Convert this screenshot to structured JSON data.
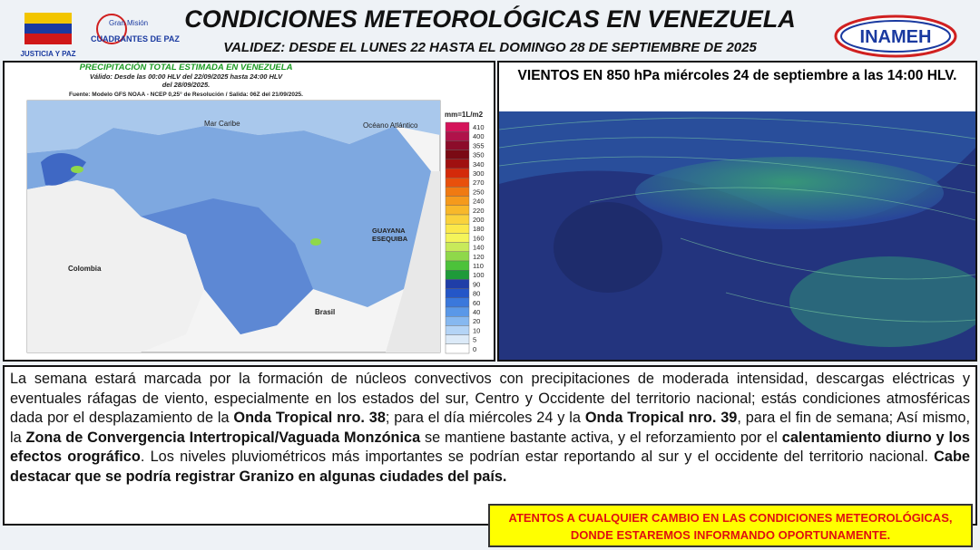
{
  "header": {
    "title": "CONDICIONES METEOROLÓGICAS EN VENEZUELA",
    "subtitle": "VALIDEZ: DESDE EL LUNES 22 HASTA EL DOMINGO 28 DE SEPTIEMBRE DE 2025",
    "logo_left": "JUSTICIA Y PAZ",
    "logo_mid_top": "Gran Misión",
    "logo_mid": "CUADRANTES DE PAZ",
    "logo_right": "INAMEH"
  },
  "left_panel": {
    "title": "PRECIPITACIÓN TOTAL ESTIMADA EN VENEZUELA",
    "validity": "Válido: Desde las 00:00 HLV del 22/09/2025 hasta 24:00 HLV",
    "validity2": "del 28/09/2025.",
    "source": "Fuente: Modelo GFS NOAA - NCEP 0,25° de Resolución / Salida: 06Z del 21/09/2025.",
    "unit": "mm=1L/m2",
    "map_labels": [
      "Mar Caribe",
      "Océano Atlántico",
      "Colombia",
      "Brasil",
      "GUAYANA",
      "ESEQUIBA"
    ],
    "legend": [
      {
        "value": "410",
        "color": "#d4145a"
      },
      {
        "value": "400",
        "color": "#b0124a"
      },
      {
        "value": "355",
        "color": "#8c0c2a"
      },
      {
        "value": "350",
        "color": "#7a0a14"
      },
      {
        "value": "340",
        "color": "#a01010"
      },
      {
        "value": "300",
        "color": "#d42a0a"
      },
      {
        "value": "270",
        "color": "#e8500c"
      },
      {
        "value": "250",
        "color": "#f07a12"
      },
      {
        "value": "240",
        "color": "#f59a1c"
      },
      {
        "value": "220",
        "color": "#f8b82a"
      },
      {
        "value": "200",
        "color": "#fad23c"
      },
      {
        "value": "180",
        "color": "#fbe84a"
      },
      {
        "value": "160",
        "color": "#f4f45a"
      },
      {
        "value": "140",
        "color": "#c8ea5a"
      },
      {
        "value": "120",
        "color": "#8fd84a"
      },
      {
        "value": "110",
        "color": "#4cc23a"
      },
      {
        "value": "100",
        "color": "#1e9a3a"
      },
      {
        "value": "90",
        "color": "#1f3ea8"
      },
      {
        "value": "80",
        "color": "#2456c8"
      },
      {
        "value": "60",
        "color": "#3a78dc"
      },
      {
        "value": "40",
        "color": "#5a98e8"
      },
      {
        "value": "20",
        "color": "#86b8f0"
      },
      {
        "value": "10",
        "color": "#b4d4f6"
      },
      {
        "value": "5",
        "color": "#dceaf8"
      },
      {
        "value": "0",
        "color": "#ffffff"
      }
    ]
  },
  "right_panel": {
    "title": "VIENTOS EN 850 hPa  miércoles 24 de septiembre a las 14:00 HLV."
  },
  "body": {
    "segments": [
      {
        "text": "La semana estará marcada por la formación de núcleos convectivos con precipitaciones de moderada intensidad, descargas eléctricas y eventuales ráfagas de viento, especialmente en los estados del sur, Centro y Occidente del territorio nacional; estás condiciones atmosféricas dada por el desplazamiento de la ",
        "bold": false
      },
      {
        "text": "Onda Tropical nro. 38",
        "bold": true
      },
      {
        "text": "; para el día miércoles 24 y la ",
        "bold": false
      },
      {
        "text": "Onda Tropical nro. 39",
        "bold": true
      },
      {
        "text": ", para el fin de semana; Así mismo, la ",
        "bold": false
      },
      {
        "text": "Zona de Convergencia Intertropical/Vaguada Monzónica",
        "bold": true
      },
      {
        "text": " se mantiene bastante activa, y el reforzamiento por el ",
        "bold": false
      },
      {
        "text": "calentamiento diurno y los efectos orográfico",
        "bold": true
      },
      {
        "text": ". Los niveles pluviométricos más importantes se podrían estar reportando al sur y el occidente del territorio nacional. ",
        "bold": false
      },
      {
        "text": "Cabe destacar que se podría registrar Granizo en algunas ciudades del país.",
        "bold": true
      }
    ]
  },
  "notice": {
    "line1": "ATENTOS A CUALQUIER CAMBIO EN LAS CONDICIONES METEOROLÓGICAS,",
    "line2": "DONDE ESTAREMOS INFORMANDO OPORTUNAMENTE."
  }
}
